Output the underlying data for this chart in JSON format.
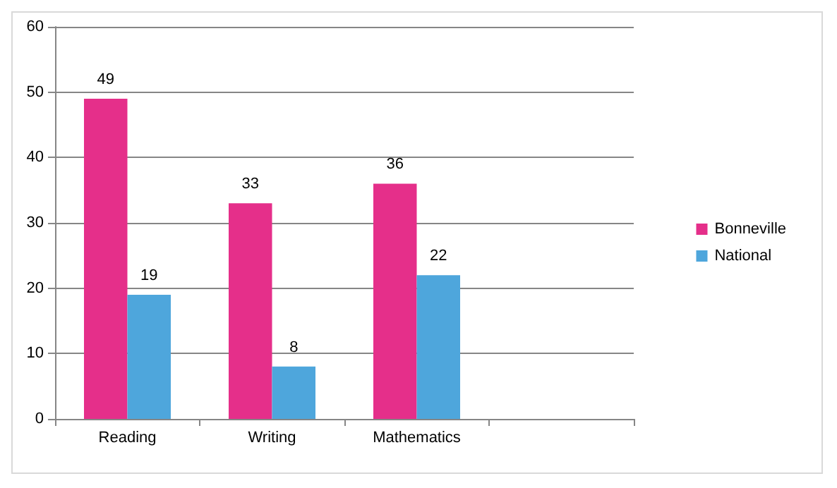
{
  "chart_data": {
    "type": "bar",
    "categories": [
      "Reading",
      "Writing",
      "Mathematics",
      null
    ],
    "series": [
      {
        "name": "Bonneville",
        "color": "#e52f8a",
        "values": [
          49,
          33,
          36,
          null
        ]
      },
      {
        "name": "National",
        "color": "#4ea6dc",
        "values": [
          19,
          8,
          22,
          null
        ]
      }
    ],
    "ylim": [
      0,
      60
    ],
    "yticks": [
      0,
      10,
      20,
      30,
      40,
      50,
      60
    ],
    "grid": "y",
    "legend": "right",
    "data_labels": true
  }
}
